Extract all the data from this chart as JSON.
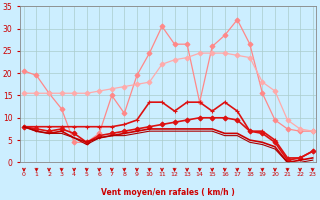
{
  "title": "",
  "xlabel": "Vent moyen/en rafales ( km/h )",
  "background_color": "#cceeff",
  "grid_color": "#aacccc",
  "x": [
    0,
    1,
    2,
    3,
    4,
    5,
    6,
    7,
    8,
    9,
    10,
    11,
    12,
    13,
    14,
    15,
    16,
    17,
    18,
    19,
    20,
    21,
    22,
    23
  ],
  "series": [
    {
      "name": "rafales_volatile",
      "color": "#ff8888",
      "values": [
        20.5,
        19.5,
        15.5,
        12.0,
        4.5,
        4.5,
        6.5,
        15.0,
        11.0,
        19.5,
        24.5,
        30.5,
        26.5,
        26.5,
        13.5,
        26.0,
        28.5,
        32.0,
        26.5,
        15.5,
        9.5,
        7.5,
        7.0,
        7.0
      ],
      "marker": "D",
      "markersize": 2.5,
      "linewidth": 0.9
    },
    {
      "name": "rafales_trend",
      "color": "#ffaaaa",
      "values": [
        15.5,
        15.5,
        15.5,
        15.5,
        15.5,
        15.5,
        16.0,
        16.5,
        17.0,
        17.5,
        18.0,
        22.0,
        23.0,
        23.5,
        24.5,
        24.5,
        24.5,
        24.0,
        23.5,
        18.0,
        16.0,
        9.5,
        7.5,
        7.0
      ],
      "marker": "D",
      "markersize": 2.5,
      "linewidth": 0.9
    },
    {
      "name": "vent_max_markers",
      "color": "#dd1111",
      "values": [
        8.0,
        8.0,
        8.0,
        8.0,
        8.0,
        8.0,
        8.0,
        8.0,
        8.5,
        9.5,
        13.5,
        13.5,
        11.5,
        13.5,
        13.5,
        11.5,
        13.5,
        11.5,
        7.0,
        7.0,
        5.0,
        1.0,
        1.0,
        2.5
      ],
      "marker": "+",
      "markersize": 3.5,
      "linewidth": 1.2
    },
    {
      "name": "vent_moyen_diamonds",
      "color": "#dd1111",
      "values": [
        8.0,
        7.5,
        7.0,
        7.5,
        6.5,
        4.5,
        6.0,
        6.5,
        7.0,
        7.5,
        8.0,
        8.5,
        9.0,
        9.5,
        10.0,
        10.0,
        10.0,
        9.5,
        7.0,
        6.5,
        4.5,
        0.5,
        1.0,
        2.5
      ],
      "marker": "D",
      "markersize": 2.5,
      "linewidth": 1.2
    },
    {
      "name": "vent_flat1",
      "color": "#cc0000",
      "values": [
        8.0,
        7.0,
        6.5,
        7.0,
        5.5,
        4.5,
        5.5,
        6.0,
        6.5,
        7.0,
        7.5,
        7.5,
        7.5,
        7.5,
        7.5,
        7.5,
        6.5,
        6.5,
        5.0,
        4.5,
        3.5,
        0.0,
        0.5,
        1.0
      ],
      "marker": null,
      "markersize": 0,
      "linewidth": 1.2
    },
    {
      "name": "vent_flat2",
      "color": "#aa0000",
      "values": [
        8.0,
        7.0,
        6.5,
        6.5,
        5.5,
        4.0,
        5.5,
        6.0,
        6.0,
        6.5,
        7.0,
        7.0,
        7.0,
        7.0,
        7.0,
        7.0,
        6.0,
        6.0,
        4.5,
        4.0,
        3.0,
        0.0,
        0.0,
        0.5
      ],
      "marker": null,
      "markersize": 0,
      "linewidth": 0.8
    }
  ],
  "ylim": [
    0,
    35
  ],
  "yticks": [
    0,
    5,
    10,
    15,
    20,
    25,
    30,
    35
  ],
  "xlim": [
    -0.3,
    23.3
  ],
  "tick_color": "#cc0000",
  "label_color": "#cc0000",
  "axis_color": "#888888"
}
